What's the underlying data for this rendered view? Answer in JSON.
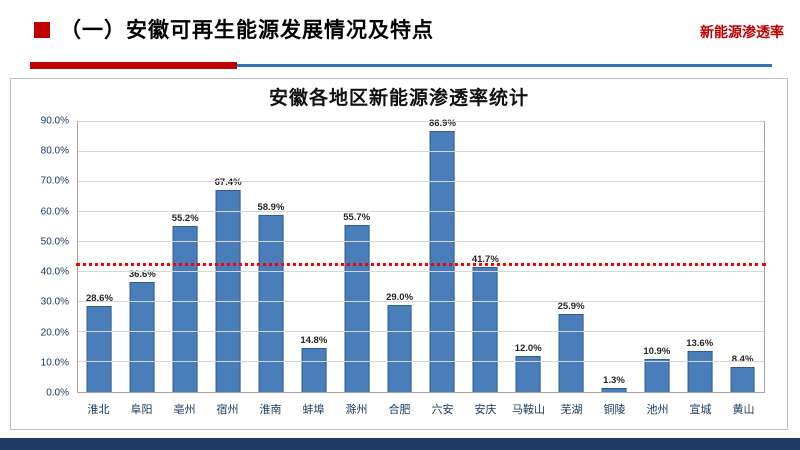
{
  "header": {
    "title": "（一）安徽可再生能源发展情况及特点",
    "corner_label": "新能源渗透率",
    "accent_red": "#c00000",
    "accent_blue": "#2e75b6"
  },
  "chart_data": {
    "type": "bar",
    "title": "安徽各地区新能源渗透率统计",
    "categories": [
      "淮北",
      "阜阳",
      "亳州",
      "宿州",
      "淮南",
      "蚌埠",
      "滁州",
      "合肥",
      "六安",
      "安庆",
      "马鞍山",
      "芜湖",
      "铜陵",
      "池州",
      "宣城",
      "黄山"
    ],
    "values": [
      28.6,
      36.6,
      55.2,
      67.4,
      58.9,
      14.8,
      55.7,
      29.0,
      86.9,
      41.7,
      12.0,
      25.9,
      1.3,
      10.9,
      13.6,
      8.4
    ],
    "labels": [
      "28.6%",
      "36.6%",
      "55.2%",
      "67.4%",
      "58.9%",
      "14.8%",
      "55.7%",
      "29.0%",
      "86.9%",
      "41.7%",
      "12.0%",
      "25.9%",
      "1.3%",
      "10.9%",
      "13.6%",
      "8.4%"
    ],
    "xlabel": "",
    "ylabel": "",
    "ylim": [
      0,
      90
    ],
    "ytick_step": 10,
    "ytick_labels": [
      "0.0%",
      "10.0%",
      "20.0%",
      "30.0%",
      "40.0%",
      "50.0%",
      "60.0%",
      "70.0%",
      "80.0%",
      "90.0%"
    ],
    "reference_line": {
      "value": 42.0,
      "color": "#ff0000",
      "style": "dotted"
    },
    "bar_color": "#4a7ebb",
    "bar_border": "#2f5c94",
    "grid": true,
    "legend": false
  },
  "footer": {
    "bar_color": "#1f3864"
  }
}
